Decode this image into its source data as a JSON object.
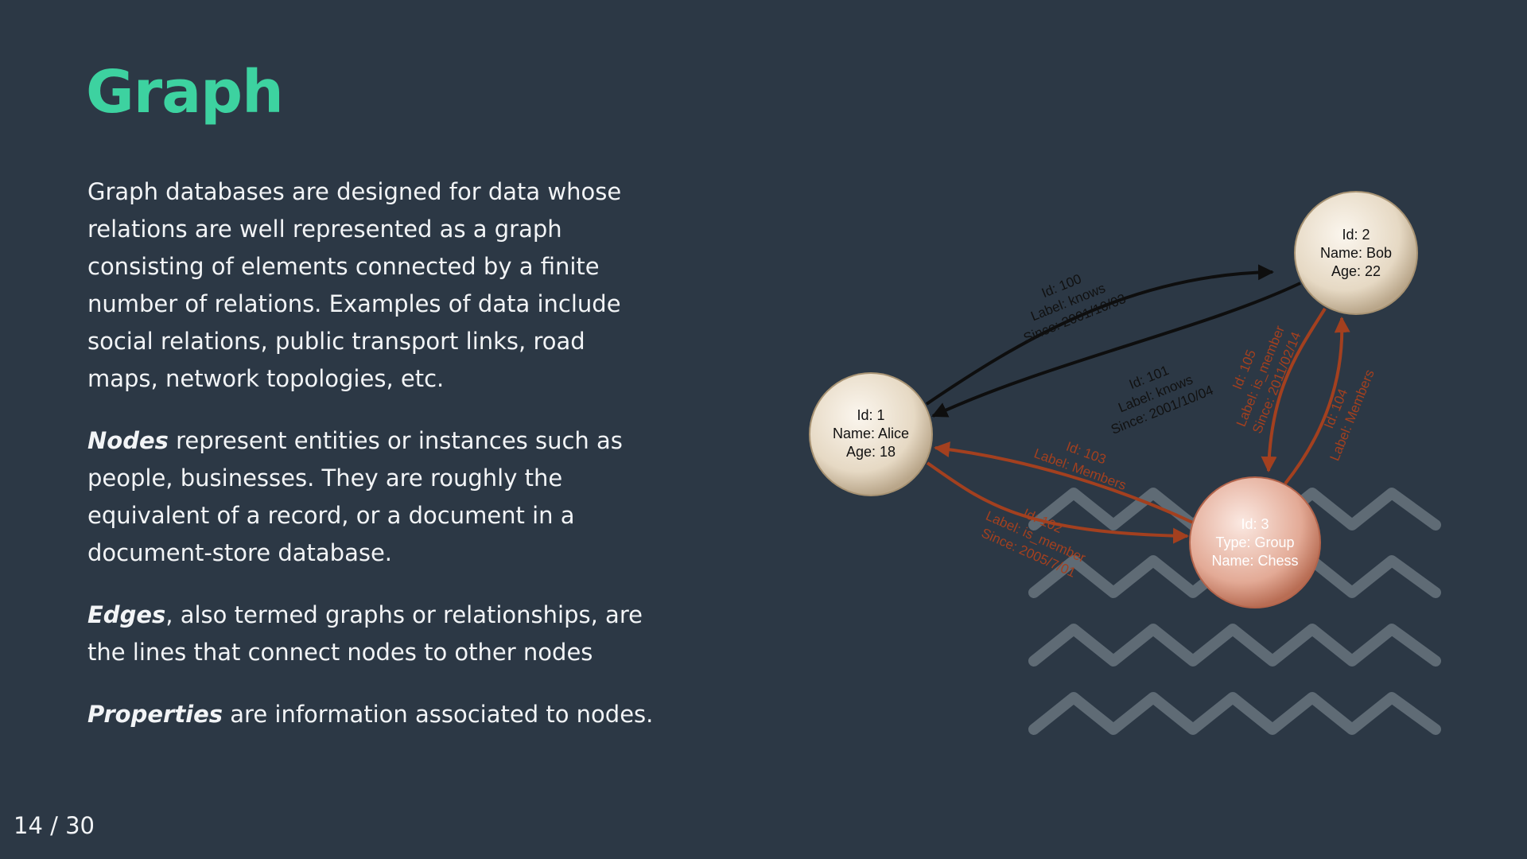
{
  "slide": {
    "title": "Graph",
    "paragraphs": {
      "intro": "Graph databases are designed for data whose relations are well represented as a graph consisting of elements connected by a finite number of relations. Examples of data include social relations, public transport links, road maps, network topologies, etc.",
      "nodes": {
        "term": "Nodes",
        "text": " represent entities or instances such as people, businesses. They are roughly the equivalent of a record, or a document in a document-store database."
      },
      "edges": {
        "term": "Edges",
        "text": ", also termed graphs or relationships, are the lines that connect nodes to other nodes"
      },
      "properties": {
        "term": "Properties",
        "text": " are information associated to nodes."
      }
    },
    "page_counter": "14 / 30"
  },
  "diagram": {
    "colors": {
      "background": "#2c3845",
      "accent": "#3dd2a0",
      "black_edge": "#0e0e0e",
      "red_edge": "#a3401f",
      "node_fill_tan": "#e9ddc9",
      "node_fill_red": "#e7b3a1"
    },
    "nodes": {
      "alice": {
        "id": "Id: 1",
        "name": "Name: Alice",
        "age": "Age: 18"
      },
      "bob": {
        "id": "Id: 2",
        "name": "Name: Bob",
        "age": "Age: 22"
      },
      "group": {
        "id": "Id: 3",
        "type": "Type: Group",
        "name": "Name: Chess"
      }
    },
    "edges": {
      "e100": {
        "id": "Id: 100",
        "label": "Label: knows",
        "since": "Since: 2001/10/03"
      },
      "e101": {
        "id": "Id: 101",
        "label": "Label: knows",
        "since": "Since: 2001/10/04"
      },
      "e102": {
        "id": "Id: 102",
        "label": "Label: is_member",
        "since": "Since: 2005/7/01"
      },
      "e103": {
        "id": "Id: 103",
        "label": "Label: Members"
      },
      "e104": {
        "id": "Id: 104",
        "label": "Label: Members"
      },
      "e105": {
        "id": "Id: 105",
        "label": "Label: is_member",
        "since": "Since: 2011/02/14"
      }
    }
  }
}
